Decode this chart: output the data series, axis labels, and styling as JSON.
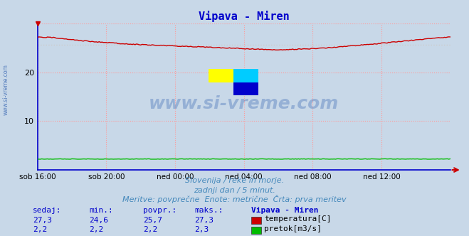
{
  "title": "Vipava - Miren",
  "title_color": "#0000cc",
  "background_color": "#c8d8e8",
  "plot_bg_color": "#c8d8e8",
  "x_tick_labels": [
    "sob 16:00",
    "sob 20:00",
    "ned 00:00",
    "ned 04:00",
    "ned 08:00",
    "ned 12:00"
  ],
  "x_tick_positions": [
    0,
    48,
    96,
    144,
    192,
    240
  ],
  "ylim": [
    0,
    30
  ],
  "xlim": [
    0,
    288
  ],
  "yticks": [
    10,
    20
  ],
  "grid_color": "#ff9999",
  "grid_linestyle": ":",
  "temp_color": "#cc0000",
  "flow_color": "#00bb00",
  "avg_line_color": "#cccccc",
  "avg_line_style": ":",
  "temp_min": 24.6,
  "temp_max": 27.3,
  "temp_avg": 25.7,
  "flow_min": 2.2,
  "flow_max": 2.3,
  "flow_avg": 2.2,
  "temp_current": 27.3,
  "flow_current": 2.2,
  "footer_line1": "Slovenija / reke in morje.",
  "footer_line2": "zadnji dan / 5 minut.",
  "footer_line3": "Meritve: povprečne  Enote: metrične  Črta: prva meritev",
  "footer_color": "#4488bb",
  "table_header": [
    "sedaj:",
    "min.:",
    "povpr.:",
    "maks.:",
    "Vipava - Miren"
  ],
  "table_color": "#0000cc",
  "legend_temp": "temperatura[C]",
  "legend_flow": "pretok[m3/s]",
  "watermark": "www.si-vreme.com",
  "watermark_color": "#2255aa",
  "left_watermark": "www.si-vreme.com",
  "logo_yellow": "#ffff00",
  "logo_cyan": "#00ccff",
  "logo_blue": "#0000cc"
}
